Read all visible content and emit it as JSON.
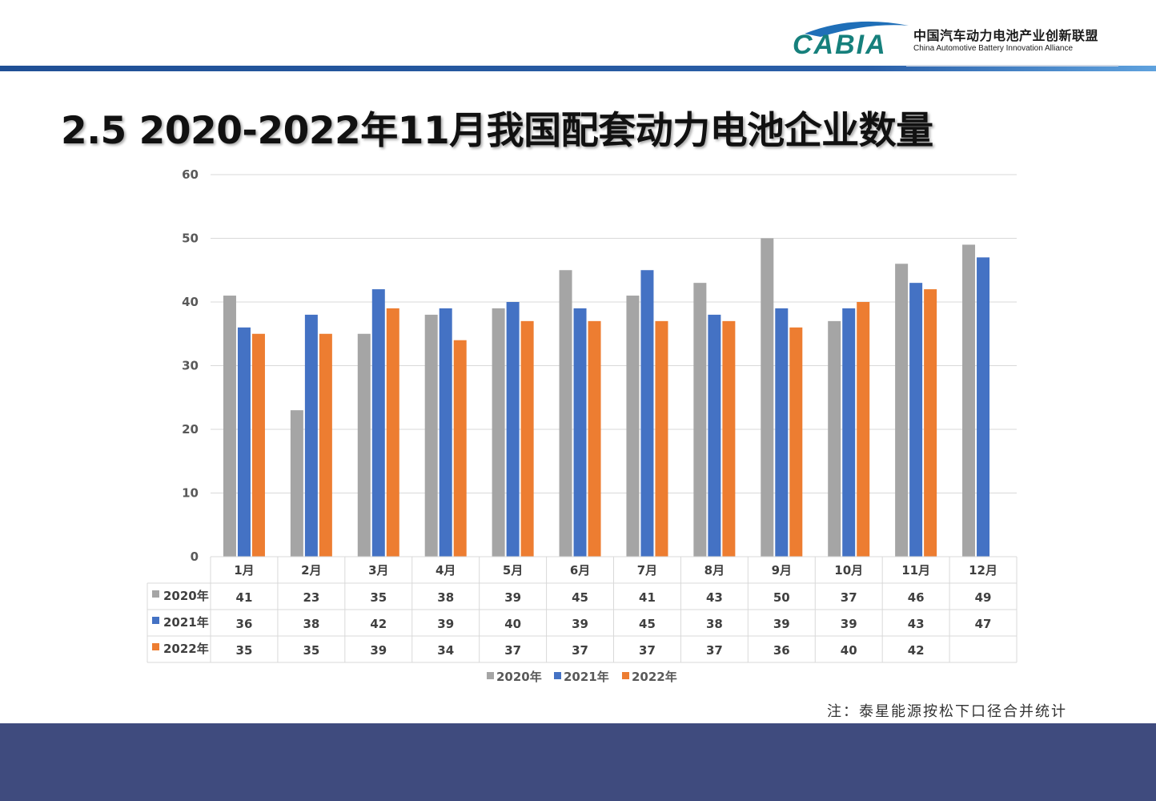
{
  "header": {
    "logo_cn": "中国汽车动力电池产业创新联盟",
    "logo_en": "China Automotive Battery Innovation Alliance",
    "logo_mark": "CABIA"
  },
  "title": "2.5 2020-2022年11月我国配套动力电池企业数量",
  "note": "注：泰星能源按松下口径合并统计",
  "colors": {
    "s2020": "#a5a5a5",
    "s2021": "#4472c4",
    "s2022": "#ed7d31",
    "footer": "#3f4b7e"
  },
  "chart_data": {
    "type": "bar",
    "categories": [
      "1月",
      "2月",
      "3月",
      "4月",
      "5月",
      "6月",
      "7月",
      "8月",
      "9月",
      "10月",
      "11月",
      "12月"
    ],
    "series": [
      {
        "name": "2020年",
        "values": [
          41,
          23,
          35,
          38,
          39,
          45,
          41,
          43,
          50,
          37,
          46,
          49
        ]
      },
      {
        "name": "2021年",
        "values": [
          36,
          38,
          42,
          39,
          40,
          39,
          45,
          38,
          39,
          39,
          43,
          47
        ]
      },
      {
        "name": "2022年",
        "values": [
          35,
          35,
          39,
          34,
          37,
          37,
          37,
          37,
          36,
          40,
          42,
          null
        ]
      }
    ],
    "ylim": [
      0,
      60
    ],
    "yticks": [
      0,
      10,
      20,
      30,
      40,
      50,
      60
    ],
    "grid": true,
    "legend": "bottom",
    "data_table": true
  }
}
